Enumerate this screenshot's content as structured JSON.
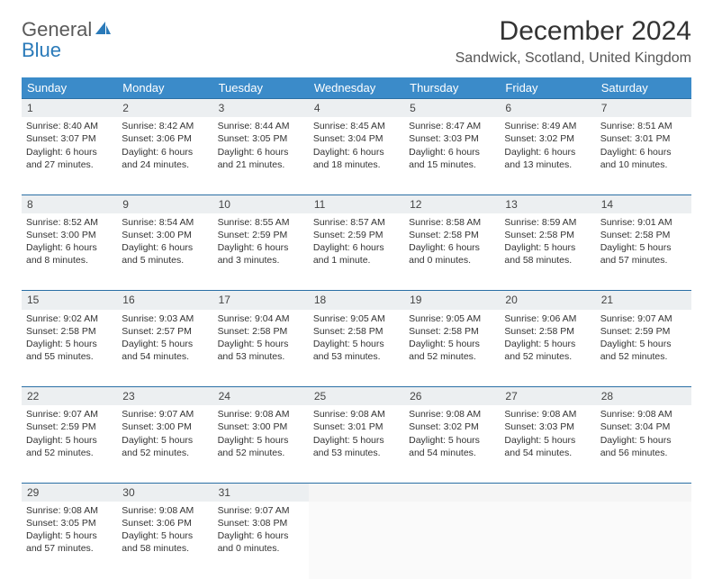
{
  "brand": {
    "name_a": "General",
    "name_b": "Blue"
  },
  "title": "December 2024",
  "location": "Sandwick, Scotland, United Kingdom",
  "colors": {
    "header_bg": "#3b8bc9",
    "header_text": "#ffffff",
    "daynum_bg": "#eceff1",
    "border": "#2a6fa5",
    "logo_blue": "#2a7ab9",
    "body_text": "#333333"
  },
  "weekdays": [
    "Sunday",
    "Monday",
    "Tuesday",
    "Wednesday",
    "Thursday",
    "Friday",
    "Saturday"
  ],
  "weeks": [
    {
      "nums": [
        "1",
        "2",
        "3",
        "4",
        "5",
        "6",
        "7"
      ],
      "cells": [
        "Sunrise: 8:40 AM\nSunset: 3:07 PM\nDaylight: 6 hours and 27 minutes.",
        "Sunrise: 8:42 AM\nSunset: 3:06 PM\nDaylight: 6 hours and 24 minutes.",
        "Sunrise: 8:44 AM\nSunset: 3:05 PM\nDaylight: 6 hours and 21 minutes.",
        "Sunrise: 8:45 AM\nSunset: 3:04 PM\nDaylight: 6 hours and 18 minutes.",
        "Sunrise: 8:47 AM\nSunset: 3:03 PM\nDaylight: 6 hours and 15 minutes.",
        "Sunrise: 8:49 AM\nSunset: 3:02 PM\nDaylight: 6 hours and 13 minutes.",
        "Sunrise: 8:51 AM\nSunset: 3:01 PM\nDaylight: 6 hours and 10 minutes."
      ]
    },
    {
      "nums": [
        "8",
        "9",
        "10",
        "11",
        "12",
        "13",
        "14"
      ],
      "cells": [
        "Sunrise: 8:52 AM\nSunset: 3:00 PM\nDaylight: 6 hours and 8 minutes.",
        "Sunrise: 8:54 AM\nSunset: 3:00 PM\nDaylight: 6 hours and 5 minutes.",
        "Sunrise: 8:55 AM\nSunset: 2:59 PM\nDaylight: 6 hours and 3 minutes.",
        "Sunrise: 8:57 AM\nSunset: 2:59 PM\nDaylight: 6 hours and 1 minute.",
        "Sunrise: 8:58 AM\nSunset: 2:58 PM\nDaylight: 6 hours and 0 minutes.",
        "Sunrise: 8:59 AM\nSunset: 2:58 PM\nDaylight: 5 hours and 58 minutes.",
        "Sunrise: 9:01 AM\nSunset: 2:58 PM\nDaylight: 5 hours and 57 minutes."
      ]
    },
    {
      "nums": [
        "15",
        "16",
        "17",
        "18",
        "19",
        "20",
        "21"
      ],
      "cells": [
        "Sunrise: 9:02 AM\nSunset: 2:58 PM\nDaylight: 5 hours and 55 minutes.",
        "Sunrise: 9:03 AM\nSunset: 2:57 PM\nDaylight: 5 hours and 54 minutes.",
        "Sunrise: 9:04 AM\nSunset: 2:58 PM\nDaylight: 5 hours and 53 minutes.",
        "Sunrise: 9:05 AM\nSunset: 2:58 PM\nDaylight: 5 hours and 53 minutes.",
        "Sunrise: 9:05 AM\nSunset: 2:58 PM\nDaylight: 5 hours and 52 minutes.",
        "Sunrise: 9:06 AM\nSunset: 2:58 PM\nDaylight: 5 hours and 52 minutes.",
        "Sunrise: 9:07 AM\nSunset: 2:59 PM\nDaylight: 5 hours and 52 minutes."
      ]
    },
    {
      "nums": [
        "22",
        "23",
        "24",
        "25",
        "26",
        "27",
        "28"
      ],
      "cells": [
        "Sunrise: 9:07 AM\nSunset: 2:59 PM\nDaylight: 5 hours and 52 minutes.",
        "Sunrise: 9:07 AM\nSunset: 3:00 PM\nDaylight: 5 hours and 52 minutes.",
        "Sunrise: 9:08 AM\nSunset: 3:00 PM\nDaylight: 5 hours and 52 minutes.",
        "Sunrise: 9:08 AM\nSunset: 3:01 PM\nDaylight: 5 hours and 53 minutes.",
        "Sunrise: 9:08 AM\nSunset: 3:02 PM\nDaylight: 5 hours and 54 minutes.",
        "Sunrise: 9:08 AM\nSunset: 3:03 PM\nDaylight: 5 hours and 54 minutes.",
        "Sunrise: 9:08 AM\nSunset: 3:04 PM\nDaylight: 5 hours and 56 minutes."
      ]
    },
    {
      "nums": [
        "29",
        "30",
        "31",
        "",
        "",
        "",
        ""
      ],
      "cells": [
        "Sunrise: 9:08 AM\nSunset: 3:05 PM\nDaylight: 5 hours and 57 minutes.",
        "Sunrise: 9:08 AM\nSunset: 3:06 PM\nDaylight: 5 hours and 58 minutes.",
        "Sunrise: 9:07 AM\nSunset: 3:08 PM\nDaylight: 6 hours and 0 minutes.",
        "",
        "",
        "",
        ""
      ]
    }
  ]
}
